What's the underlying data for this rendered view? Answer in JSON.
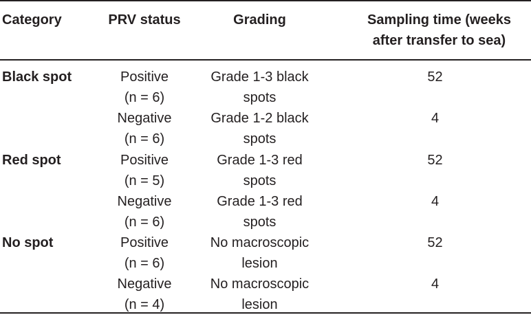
{
  "headers": {
    "category": "Category",
    "prv_status": "PRV status",
    "grading": "Grading",
    "sampling_line1": "Sampling time (weeks",
    "sampling_line2": "after transfer to sea)"
  },
  "rows": [
    {
      "category": "Black spot",
      "prv1": "Positive",
      "prv2": "(n = 6)",
      "grade1": "Grade 1-3 black",
      "grade2": "spots",
      "time": "52"
    },
    {
      "category": "",
      "prv1": "Negative",
      "prv2": "(n = 6)",
      "grade1": "Grade 1-2 black",
      "grade2": "spots",
      "time": "4"
    },
    {
      "category": "Red spot",
      "prv1": "Positive",
      "prv2": "(n = 5)",
      "grade1": "Grade 1-3 red",
      "grade2": "spots",
      "time": "52"
    },
    {
      "category": "",
      "prv1": "Negative",
      "prv2": "(n = 6)",
      "grade1": "Grade 1-3 red",
      "grade2": "spots",
      "time": "4"
    },
    {
      "category": "No spot",
      "prv1": "Positive",
      "prv2": "(n = 6)",
      "grade1": "No macroscopic",
      "grade2": "lesion",
      "time": "52"
    },
    {
      "category": "",
      "prv1": "Negative",
      "prv2": "(n = 4)",
      "grade1": "No macroscopic",
      "grade2": "lesion",
      "time": "4"
    }
  ]
}
